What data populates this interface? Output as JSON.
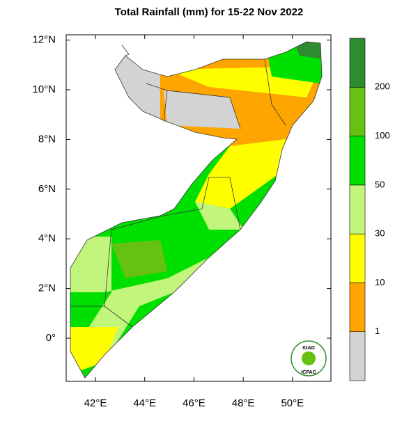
{
  "title": "Total Rainfall (mm) for 15-22 Nov 2022",
  "map": {
    "lat_ticks": [
      {
        "value": 12,
        "label": "12°N"
      },
      {
        "value": 10,
        "label": "10°N"
      },
      {
        "value": 8,
        "label": "8°N"
      },
      {
        "value": 6,
        "label": "6°N"
      },
      {
        "value": 4,
        "label": "4°N"
      },
      {
        "value": 2,
        "label": "2°N"
      },
      {
        "value": 0,
        "label": "0°"
      }
    ],
    "lon_ticks": [
      {
        "value": 42,
        "label": "42°E"
      },
      {
        "value": 44,
        "label": "44°E"
      },
      {
        "value": 46,
        "label": "46°E"
      },
      {
        "value": 48,
        "label": "48°E"
      },
      {
        "value": 50,
        "label": "50°E"
      }
    ]
  },
  "colorbar": {
    "levels": [
      1,
      10,
      30,
      50,
      100,
      200
    ],
    "colors": [
      "#d3d3d3",
      "#ffa500",
      "#ffff00",
      "#c2f57c",
      "#00e000",
      "#66c210",
      "#2e8b2e"
    ]
  },
  "logo": {
    "top": "IGAD",
    "bottom": "ICPAC"
  }
}
